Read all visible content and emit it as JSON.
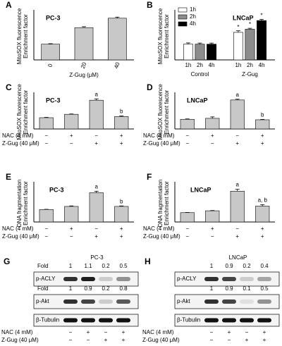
{
  "chart_data": [
    {
      "type": "bar",
      "panel": "A",
      "title": "PC-3",
      "ylabel": [
        "MitoSOX fluorescence",
        "Enrichment factor"
      ],
      "categories": [
        "0",
        "20",
        "40"
      ],
      "values": [
        1,
        2.05,
        2.65
      ],
      "errors": [
        0.03,
        0.06,
        0.07
      ],
      "xlabel": "Z-Gug (μM)",
      "ylim": [
        0,
        3
      ],
      "color": "#c8c8c8"
    },
    {
      "type": "grouped-bar",
      "panel": "B",
      "title": "LNCaP",
      "ylabel": [
        "MitoSOX fluorescence",
        "Enrichment factor"
      ],
      "categories": [
        "Control",
        "Z-Gug"
      ],
      "series": [
        {
          "name": "1h",
          "color": "#ffffff",
          "values": [
            1,
            1.75
          ],
          "errors": [
            0.08,
            0.1
          ],
          "markers": [
            null,
            "*"
          ]
        },
        {
          "name": "2h",
          "color": "#8c8c8c",
          "values": [
            1,
            1.95
          ],
          "errors": [
            0.07,
            0.06
          ],
          "markers": [
            null,
            "*"
          ]
        },
        {
          "name": "4h",
          "color": "#000000",
          "values": [
            1,
            2.5
          ],
          "errors": [
            0.07,
            0.08
          ],
          "markers": [
            null,
            "*"
          ]
        }
      ],
      "ylim": [
        0,
        3
      ]
    },
    {
      "type": "bar",
      "panel": "C",
      "title": "PC-3",
      "ylabel": [
        "MitoSOX fluorescence",
        "Enrichment factor"
      ],
      "values": [
        1,
        1.3,
        2.55,
        1.1
      ],
      "errors": [
        0.03,
        0.03,
        0.12,
        0.05
      ],
      "markers": [
        null,
        null,
        "a",
        "b"
      ],
      "conditions": [
        {
          "label": "NAC (4 mM)",
          "signs": [
            "−",
            "+",
            "−",
            "+"
          ]
        },
        {
          "label": "Z-Gug (40 μM)",
          "signs": [
            "−",
            "−",
            "+",
            "+"
          ]
        }
      ],
      "ylim": [
        0,
        3
      ],
      "color": "#c8c8c8"
    },
    {
      "type": "bar",
      "panel": "D",
      "title": "LNCaP",
      "ylabel": [
        "MitoSOX fluorescence",
        "Enrichment factor"
      ],
      "values": [
        1,
        1.1,
        3.0,
        0.95
      ],
      "errors": [
        0.04,
        0.15,
        0.08,
        0.04
      ],
      "markers": [
        null,
        null,
        "a",
        "b"
      ],
      "conditions": [
        {
          "label": "NAC (4 mM)",
          "signs": [
            "−",
            "+",
            "−",
            "+"
          ]
        },
        {
          "label": "Z-Gug (40 μM)",
          "signs": [
            "−",
            "−",
            "+",
            "+"
          ]
        }
      ],
      "ylim": [
        0,
        3.5
      ],
      "color": "#c8c8c8"
    },
    {
      "type": "bar",
      "panel": "E",
      "title": "PC-3",
      "ylabel": [
        "DNA fragmentation",
        "Enrichment factor"
      ],
      "values": [
        1,
        1.25,
        2.35,
        1.25
      ],
      "errors": [
        0.02,
        0.04,
        0.12,
        0.04
      ],
      "markers": [
        null,
        null,
        "a",
        "b"
      ],
      "conditions": [
        {
          "label": "NAC (4 mM)",
          "signs": [
            "−",
            "+",
            "−",
            "+"
          ]
        },
        {
          "label": "Z-Gug (40 μM)",
          "signs": [
            "−",
            "−",
            "+",
            "+"
          ]
        }
      ],
      "ylim": [
        0,
        3
      ],
      "color": "#c8c8c8"
    },
    {
      "type": "bar",
      "panel": "F",
      "title": "LNCaP",
      "ylabel": [
        "DNA fragmentation",
        "Enrichment factor"
      ],
      "values": [
        1,
        1.2,
        3.3,
        1.7
      ],
      "errors": [
        0.02,
        0.03,
        0.2,
        0.15
      ],
      "markers": [
        null,
        null,
        "a",
        "a, b"
      ],
      "conditions": [
        {
          "label": "NAC (4 mM)",
          "signs": [
            "−",
            "+",
            "−",
            "+"
          ]
        },
        {
          "label": "Z-Gug (40 μM)",
          "signs": [
            "−",
            "−",
            "+",
            "+"
          ]
        }
      ],
      "ylim": [
        0,
        4
      ],
      "color": "#c8c8c8"
    }
  ],
  "blots": [
    {
      "panel": "G",
      "cell": "PC-3",
      "rows": [
        {
          "label": "p-ACLY",
          "fold_label": "Fold",
          "folds": [
            1,
            1.1,
            0.2,
            0.5
          ]
        },
        {
          "label": "p-Akt",
          "fold_label": "Fold",
          "folds": [
            1,
            0.9,
            0.2,
            0.8
          ]
        },
        {
          "label": "β-Tubulin"
        }
      ],
      "conditions": [
        {
          "label": "NAC (4 mM)",
          "signs": [
            "−",
            "+",
            "−",
            "+"
          ]
        },
        {
          "label": "Z-Gug (40 μM)",
          "signs": [
            "−",
            "−",
            "+",
            "+"
          ]
        }
      ]
    },
    {
      "panel": "H",
      "cell": "LNCaP",
      "rows": [
        {
          "label": "p-ACLY",
          "folds": [
            1,
            0.9,
            0.2,
            0.4
          ]
        },
        {
          "label": "p-Akt",
          "folds": [
            1,
            0.9,
            0.1,
            0.5
          ]
        },
        {
          "label": "β-Tubulin"
        }
      ],
      "conditions": [
        {
          "label": "NAC (4 mM)",
          "signs": [
            "−",
            "+",
            "−",
            "+"
          ]
        },
        {
          "label": "Z-Gug (40 μM)",
          "signs": [
            "−",
            "−",
            "+",
            "+"
          ]
        }
      ]
    }
  ]
}
